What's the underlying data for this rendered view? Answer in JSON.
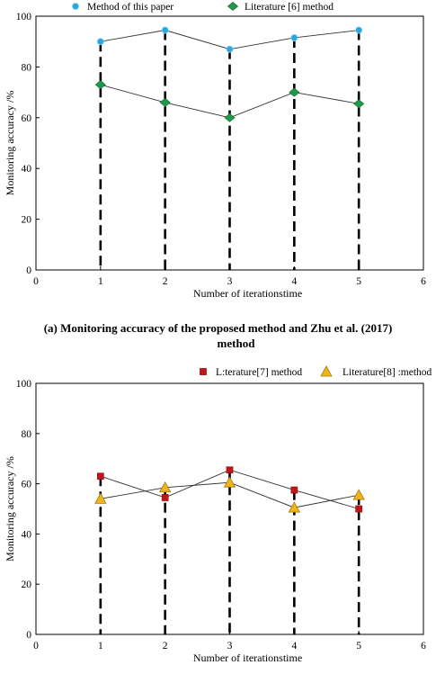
{
  "captions": {
    "line1": "(a) Monitoring accuracy of the proposed method and Zhu et al. (2017)",
    "line2": "method"
  },
  "chart_data": [
    {
      "type": "line",
      "title": "",
      "xlabel": "Number of iterationstime",
      "ylabel": "Monitoring accuracy /%",
      "xlim": [
        0,
        6
      ],
      "ylim": [
        0,
        100
      ],
      "xticks": [
        0,
        1,
        2,
        3,
        4,
        5,
        6
      ],
      "yticks": [
        0,
        20,
        40,
        60,
        80,
        100
      ],
      "grid": false,
      "legend_position": "top",
      "x": [
        1,
        2,
        3,
        4,
        5
      ],
      "series": [
        {
          "name": "Method of this paper",
          "values": [
            90,
            94.5,
            87,
            91.5,
            94.5
          ],
          "marker": "circle",
          "color": "#29a8e0"
        },
        {
          "name": "Literature [6] method",
          "values": [
            73,
            66,
            60,
            70,
            65.5
          ],
          "marker": "diamond",
          "color": "#1e9a4a"
        }
      ]
    },
    {
      "type": "line",
      "title": "",
      "xlabel": "Number of iterationstime",
      "ylabel": "Monitoring accuracy /%",
      "xlim": [
        0,
        6
      ],
      "ylim": [
        0,
        100
      ],
      "xticks": [
        0,
        1,
        2,
        3,
        4,
        5,
        6
      ],
      "yticks": [
        0,
        20,
        40,
        60,
        80,
        100
      ],
      "grid": false,
      "legend_position": "top",
      "x": [
        1,
        2,
        3,
        4,
        5
      ],
      "series": [
        {
          "name": "L:terature[7] method",
          "values": [
            63,
            54.5,
            65.5,
            57.5,
            50
          ],
          "marker": "square",
          "color": "#c0161b"
        },
        {
          "name": "Literature[8] :method",
          "values": [
            54,
            58.5,
            60.5,
            50.5,
            55.5
          ],
          "marker": "triangle",
          "color": "#f2b418"
        }
      ]
    }
  ]
}
